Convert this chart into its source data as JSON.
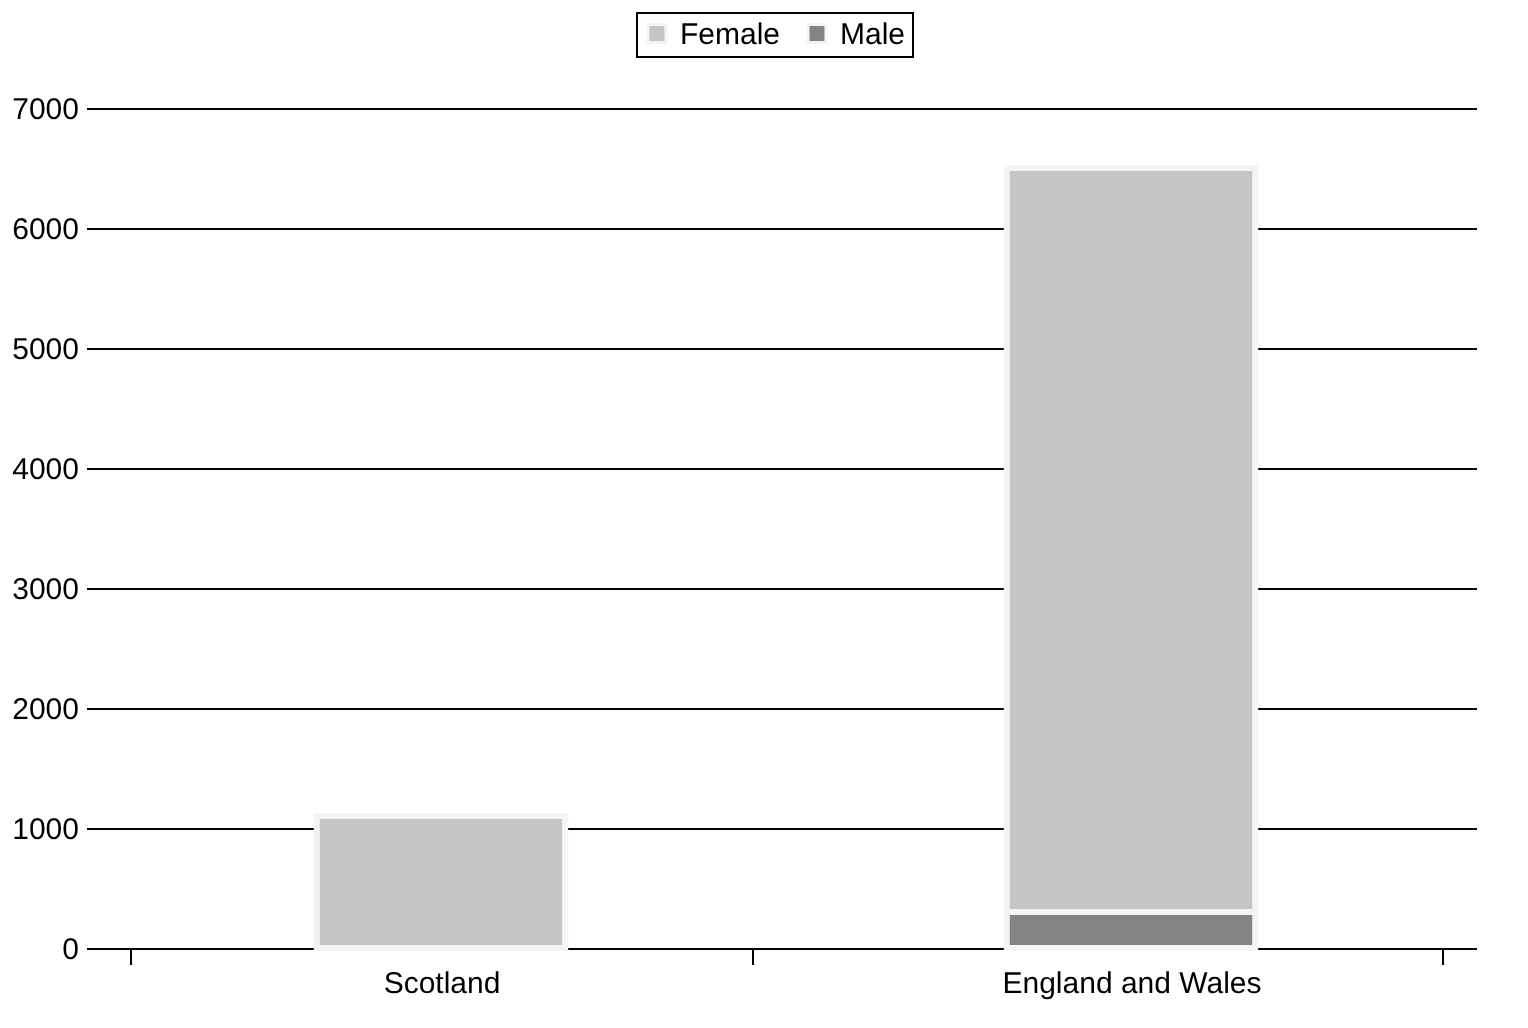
{
  "chart_data": {
    "type": "bar",
    "stacked": true,
    "categories": [
      "Scotland",
      "England and Wales"
    ],
    "series": [
      {
        "name": "Male",
        "color": "#858385",
        "values": [
          0,
          300
        ]
      },
      {
        "name": "Female",
        "color": "#c6c4c7",
        "values": [
          1100,
          6200
        ]
      }
    ],
    "ylim": [
      0,
      7000
    ],
    "yticks": [
      0,
      1000,
      2000,
      3000,
      4000,
      5000,
      6000,
      7000
    ],
    "grid": "y",
    "legend": "top"
  }
}
